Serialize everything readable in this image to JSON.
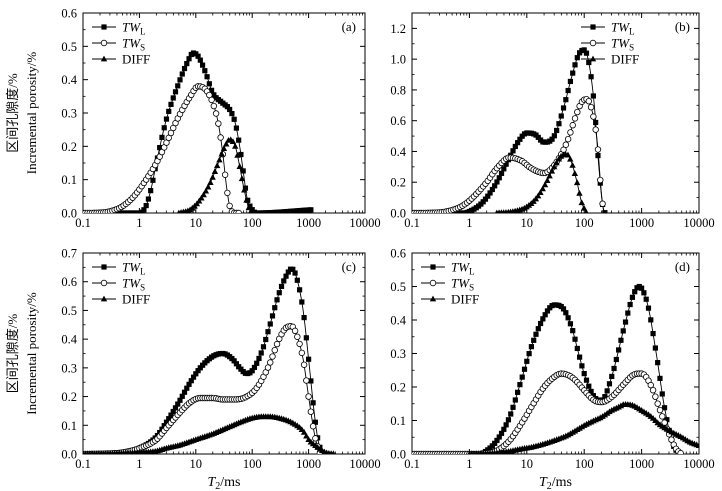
{
  "figure": {
    "ylabel_cn": "区间孔隙度/%",
    "ylabel_en": "Incremental porosity/%",
    "xlabel_main": "T",
    "xlabel_sub": "2",
    "xlabel_unit": "/ms"
  },
  "legend_labels": {
    "twl_main": "TW",
    "twl_sub": "L",
    "tws_main": "TW",
    "tws_sub": "S",
    "diff": "DIFF"
  },
  "chart_data": [
    {
      "type": "line",
      "panel_label": "(a)",
      "xscale": "log",
      "xlim": [
        0.1,
        10000
      ],
      "ylim": [
        0,
        0.6
      ],
      "x_ticks": [
        "0.1",
        "1",
        "10",
        "100",
        "1000",
        "10000"
      ],
      "y_ticks": [
        "0.0",
        "0.1",
        "0.2",
        "0.3",
        "0.4",
        "0.5",
        "0.6"
      ],
      "y_tick_values": [
        0,
        0.1,
        0.2,
        0.3,
        0.4,
        0.5,
        0.6
      ],
      "legend_position": "top-left",
      "series": [
        {
          "name": "TW_L",
          "marker": "filled-square",
          "x": [
            0.1,
            1,
            1.3,
            1.6,
            2,
            3,
            5,
            7,
            9,
            11,
            15,
            20,
            30,
            40,
            50,
            60,
            70,
            80,
            100,
            120,
            1200
          ],
          "y": [
            0,
            0,
            0.02,
            0.07,
            0.15,
            0.28,
            0.39,
            0.45,
            0.48,
            0.47,
            0.42,
            0.36,
            0.33,
            0.31,
            0.27,
            0.2,
            0.12,
            0.05,
            0.01,
            0,
            0.01
          ]
        },
        {
          "name": "TW_S",
          "marker": "open-circle",
          "x": [
            0.1,
            0.2,
            0.3,
            0.5,
            0.8,
            1.2,
            2,
            3,
            5,
            8,
            11,
            15,
            20,
            25,
            30,
            35,
            40,
            50,
            60
          ],
          "y": [
            0,
            0.001,
            0.005,
            0.02,
            0.05,
            0.09,
            0.15,
            0.21,
            0.29,
            0.35,
            0.38,
            0.37,
            0.33,
            0.27,
            0.18,
            0.08,
            0.02,
            0,
            0
          ]
        },
        {
          "name": "DIFF",
          "marker": "filled-triangle",
          "x": [
            5,
            8,
            12,
            18,
            25,
            33,
            40,
            50,
            60,
            70,
            85,
            100
          ],
          "y": [
            0,
            0.01,
            0.04,
            0.09,
            0.15,
            0.2,
            0.22,
            0.2,
            0.14,
            0.08,
            0.02,
            0
          ]
        }
      ]
    },
    {
      "type": "line",
      "panel_label": "(b)",
      "xscale": "log",
      "xlim": [
        0.1,
        10000
      ],
      "ylim": [
        0,
        1.3
      ],
      "x_ticks": [
        "0.1",
        "1",
        "10",
        "100",
        "1000",
        "10000"
      ],
      "y_ticks": [
        "0.0",
        "0.2",
        "0.4",
        "0.6",
        "0.8",
        "1.0",
        "1.2"
      ],
      "y_tick_values": [
        0,
        0.2,
        0.4,
        0.6,
        0.8,
        1.0,
        1.2
      ],
      "legend_position": "top-right",
      "series": [
        {
          "name": "TW_L",
          "marker": "filled-square",
          "x": [
            0.1,
            0.8,
            1,
            1.5,
            2,
            3,
            5,
            7,
            10,
            14,
            20,
            30,
            45,
            60,
            80,
            100,
            120,
            150,
            180,
            210,
            230
          ],
          "y": [
            0,
            0,
            0.01,
            0.05,
            0.1,
            0.2,
            0.36,
            0.46,
            0.52,
            0.51,
            0.46,
            0.5,
            0.7,
            0.88,
            1.03,
            1.06,
            0.98,
            0.7,
            0.3,
            0.05,
            0
          ]
        },
        {
          "name": "TW_S",
          "marker": "open-circle",
          "x": [
            0.1,
            0.2,
            0.4,
            0.7,
            1,
            2,
            3,
            5,
            8,
            12,
            20,
            30,
            50,
            70,
            90,
            110,
            140,
            170,
            200,
            220
          ],
          "y": [
            0,
            0.001,
            0.01,
            0.04,
            0.08,
            0.2,
            0.29,
            0.36,
            0.34,
            0.29,
            0.26,
            0.31,
            0.46,
            0.62,
            0.72,
            0.74,
            0.65,
            0.45,
            0.12,
            0
          ]
        },
        {
          "name": "DIFF",
          "marker": "filled-triangle",
          "x": [
            3,
            6,
            10,
            15,
            22,
            30,
            40,
            50,
            60,
            75,
            90,
            110
          ],
          "y": [
            0,
            0.01,
            0.04,
            0.1,
            0.2,
            0.3,
            0.37,
            0.38,
            0.33,
            0.2,
            0.07,
            0
          ]
        }
      ]
    },
    {
      "type": "line",
      "panel_label": "(c)",
      "xscale": "log",
      "xlim": [
        0.1,
        10000
      ],
      "ylim": [
        0,
        0.7
      ],
      "x_ticks": [
        "0.1",
        "1",
        "10",
        "100",
        "1000",
        "10000"
      ],
      "y_ticks": [
        "0.0",
        "0.1",
        "0.2",
        "0.3",
        "0.4",
        "0.5",
        "0.6",
        "0.7"
      ],
      "y_tick_values": [
        0,
        0.1,
        0.2,
        0.3,
        0.4,
        0.5,
        0.6,
        0.7
      ],
      "legend_position": "top-left",
      "series": [
        {
          "name": "TW_L",
          "marker": "filled-square",
          "x": [
            0.1,
            0.3,
            0.5,
            1,
            2,
            3,
            5,
            8,
            12,
            20,
            30,
            45,
            60,
            80,
            100,
            150,
            200,
            300,
            400,
            500,
            600,
            800,
            1000,
            1300,
            1500,
            1800
          ],
          "y": [
            0,
            0.002,
            0.006,
            0.02,
            0.06,
            0.11,
            0.18,
            0.25,
            0.3,
            0.34,
            0.35,
            0.33,
            0.3,
            0.28,
            0.29,
            0.36,
            0.44,
            0.56,
            0.62,
            0.645,
            0.62,
            0.5,
            0.33,
            0.12,
            0.04,
            0
          ]
        },
        {
          "name": "TW_S",
          "marker": "open-circle",
          "x": [
            0.1,
            0.3,
            0.5,
            1,
            2,
            3,
            5,
            8,
            12,
            20,
            30,
            50,
            80,
            120,
            200,
            300,
            400,
            500,
            600,
            800,
            1000,
            1300,
            1600
          ],
          "y": [
            0,
            0.002,
            0.005,
            0.02,
            0.05,
            0.09,
            0.14,
            0.18,
            0.195,
            0.195,
            0.19,
            0.19,
            0.2,
            0.23,
            0.31,
            0.4,
            0.44,
            0.445,
            0.42,
            0.33,
            0.2,
            0.06,
            0
          ]
        },
        {
          "name": "DIFF",
          "marker": "filled-triangle",
          "x": [
            0.1,
            0.3,
            0.6,
            1,
            2,
            3,
            5,
            10,
            20,
            40,
            70,
            100,
            150,
            200,
            300,
            500,
            800,
            1000,
            1300,
            2000,
            3000
          ],
          "y": [
            0,
            0.001,
            0.003,
            0.005,
            0.01,
            0.02,
            0.03,
            0.05,
            0.07,
            0.095,
            0.115,
            0.125,
            0.13,
            0.13,
            0.125,
            0.11,
            0.08,
            0.05,
            0.03,
            0.005,
            0
          ]
        }
      ]
    },
    {
      "type": "line",
      "panel_label": "(d)",
      "xscale": "log",
      "xlim": [
        0.1,
        10000
      ],
      "ylim": [
        0,
        0.6
      ],
      "x_ticks": [
        "0.1",
        "1",
        "10",
        "100",
        "1000",
        "10000"
      ],
      "y_ticks": [
        "0.0",
        "0.1",
        "0.2",
        "0.3",
        "0.4",
        "0.5",
        "0.6"
      ],
      "y_tick_values": [
        0,
        0.1,
        0.2,
        0.3,
        0.4,
        0.5,
        0.6
      ],
      "legend_position": "top-left",
      "series": [
        {
          "name": "TW_L",
          "marker": "filled-square",
          "x": [
            0.1,
            1.5,
            2,
            3,
            5,
            8,
            12,
            20,
            30,
            40,
            60,
            80,
            100,
            150,
            200,
            300,
            500,
            700,
            900,
            1000,
            1300,
            1800,
            2500,
            3500,
            4500
          ],
          "y": [
            0,
            0,
            0.01,
            0.04,
            0.11,
            0.22,
            0.32,
            0.41,
            0.445,
            0.44,
            0.38,
            0.3,
            0.24,
            0.17,
            0.16,
            0.23,
            0.38,
            0.47,
            0.5,
            0.495,
            0.44,
            0.3,
            0.14,
            0.03,
            0
          ]
        },
        {
          "name": "TW_S",
          "marker": "open-circle",
          "x": [
            0.1,
            1,
            2,
            3,
            5,
            8,
            12,
            20,
            30,
            40,
            60,
            80,
            100,
            150,
            200,
            300,
            500,
            700,
            900,
            1000,
            1500,
            2000,
            3000,
            4000,
            5000
          ],
          "y": [
            0,
            0,
            0.002,
            0.01,
            0.04,
            0.09,
            0.14,
            0.2,
            0.23,
            0.24,
            0.23,
            0.21,
            0.19,
            0.16,
            0.155,
            0.17,
            0.21,
            0.235,
            0.24,
            0.24,
            0.2,
            0.14,
            0.06,
            0.015,
            0
          ]
        },
        {
          "name": "DIFF",
          "marker": "filled-triangle",
          "x": [
            1,
            3,
            5,
            8,
            12,
            20,
            30,
            50,
            80,
            100,
            150,
            200,
            300,
            400,
            500,
            700,
            1000,
            1500,
            2000,
            3000,
            5000,
            7000,
            10000
          ],
          "y": [
            0,
            0.003,
            0.008,
            0.015,
            0.02,
            0.03,
            0.04,
            0.055,
            0.075,
            0.085,
            0.1,
            0.11,
            0.13,
            0.14,
            0.148,
            0.145,
            0.13,
            0.11,
            0.09,
            0.07,
            0.05,
            0.035,
            0.025
          ]
        }
      ]
    }
  ]
}
